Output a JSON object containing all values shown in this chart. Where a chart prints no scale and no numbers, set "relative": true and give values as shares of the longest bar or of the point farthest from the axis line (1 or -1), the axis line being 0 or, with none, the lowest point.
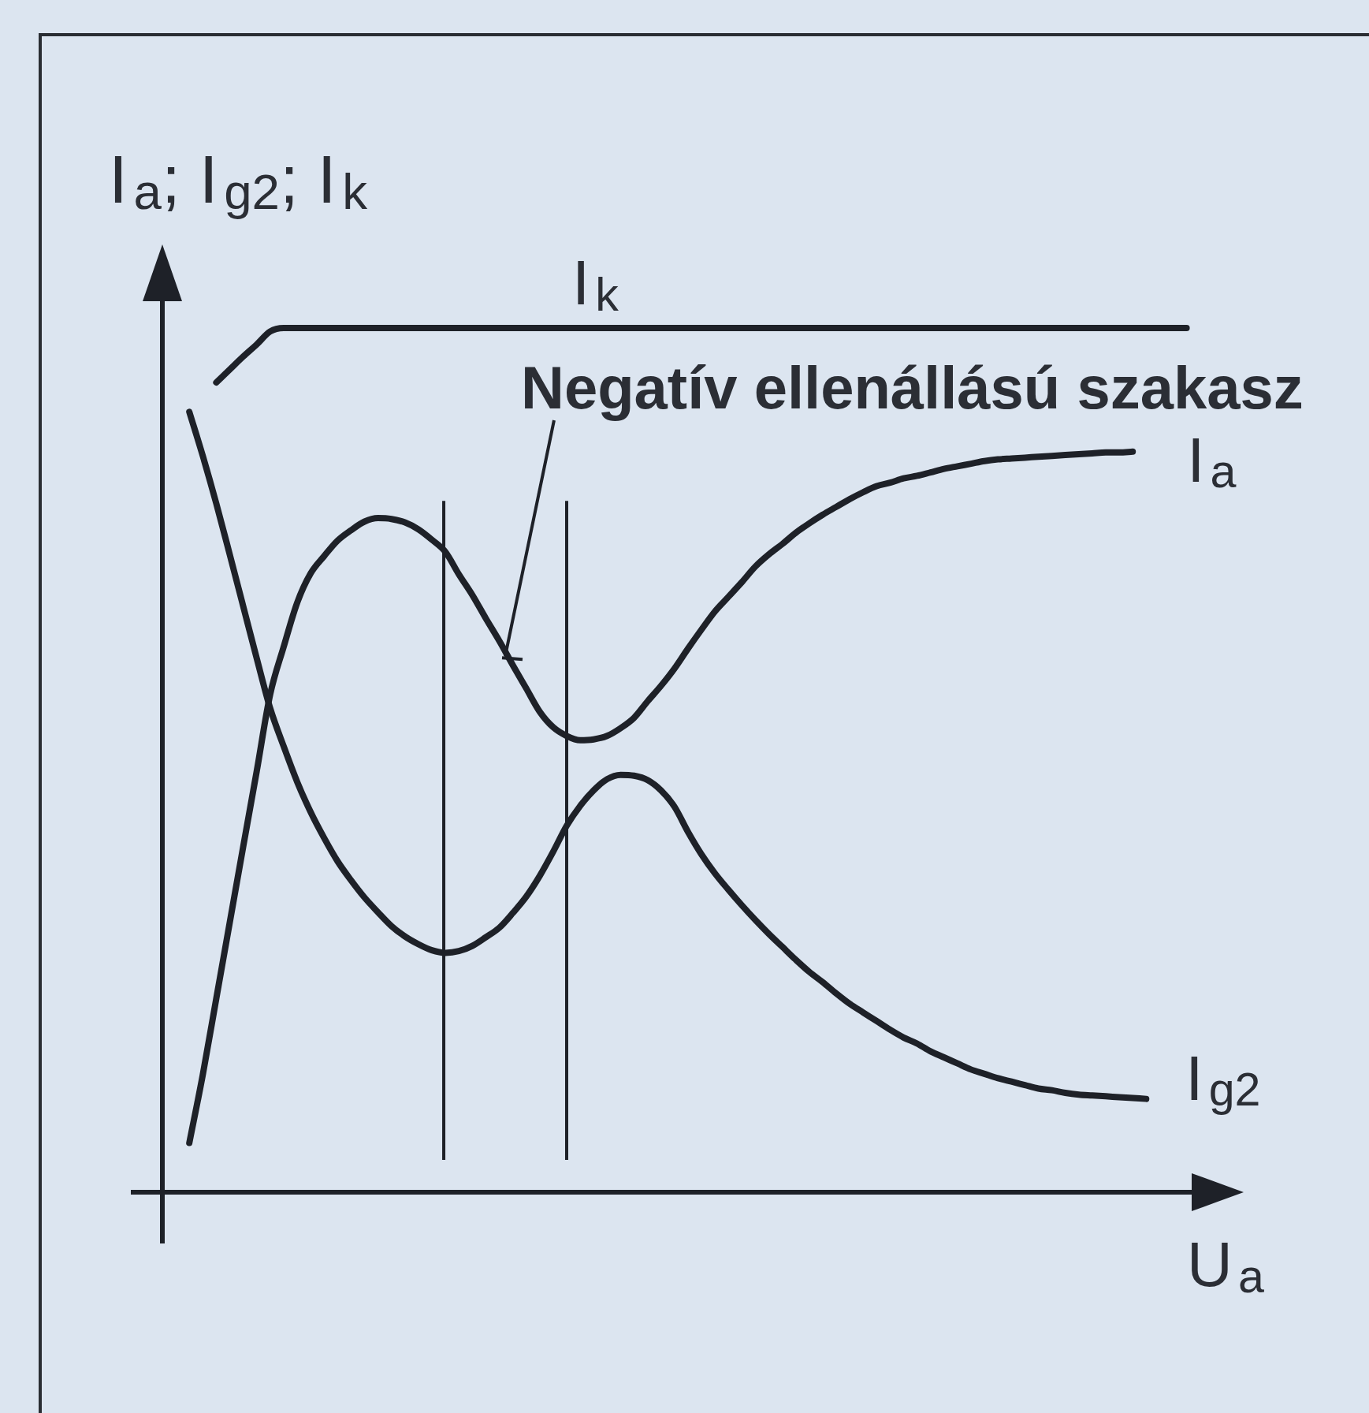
{
  "chart_data": {
    "type": "line",
    "relative": true,
    "xlabel": "U$_{a}$",
    "ylabel": "I$_{a}$; I$_{g2}$; I$_{k}$",
    "annotations": [
      "Negatív ellenállású szakasz"
    ],
    "categories": [
      null,
      null,
      null,
      null,
      null,
      null,
      null,
      null,
      null,
      null,
      null,
      null,
      null,
      null,
      null,
      null,
      null,
      null,
      null,
      null,
      null,
      null,
      null,
      null,
      null,
      null,
      null,
      null,
      null,
      null,
      null,
      null,
      null,
      null,
      null,
      null,
      null,
      null,
      null,
      null,
      null,
      null,
      null,
      null,
      null,
      null,
      null,
      null,
      null,
      null,
      null,
      null,
      null,
      null,
      null,
      null,
      null,
      null,
      null,
      null,
      null,
      null,
      null,
      null,
      null,
      null,
      null,
      null,
      null,
      null,
      null,
      null,
      null,
      null,
      null,
      null,
      null,
      null,
      null,
      null,
      null
    ],
    "series": [
      {
        "name": "I$_{a}$",
        "color": "#1e2128",
        "values": [
          null,
          null,
          0.057,
          0.136,
          0.224,
          0.312,
          0.4,
          0.487,
          0.576,
          0.631,
          0.682,
          0.716,
          0.736,
          0.754,
          0.766,
          0.776,
          0.78,
          0.779,
          0.775,
          0.767,
          0.755,
          0.741,
          0.715,
          0.691,
          0.664,
          0.638,
          0.61,
          0.583,
          0.556,
          0.538,
          0.528,
          0.523,
          0.524,
          0.528,
          0.537,
          0.549,
          0.568,
          0.586,
          0.606,
          0.629,
          0.651,
          0.672,
          0.689,
          0.706,
          0.724,
          0.738,
          0.75,
          0.763,
          0.774,
          0.784,
          0.793,
          0.802,
          0.81,
          0.817,
          0.821,
          0.826,
          0.829,
          0.833,
          0.837,
          0.84,
          0.843,
          0.846,
          0.848,
          0.849,
          0.85,
          0.851,
          0.852,
          0.853,
          0.854,
          0.855,
          0.856,
          0.856,
          0.857,
          null,
          null,
          null,
          null,
          null,
          null,
          null,
          null
        ]
      },
      {
        "name": "I$_{g2}$",
        "color": "#1e2128",
        "values": [
          null,
          null,
          0.903,
          0.852,
          0.797,
          0.738,
          0.678,
          0.618,
          0.56,
          0.516,
          0.475,
          0.44,
          0.41,
          0.383,
          0.361,
          0.341,
          0.324,
          0.308,
          0.296,
          0.287,
          0.28,
          0.277,
          0.279,
          0.285,
          0.295,
          0.306,
          0.323,
          0.342,
          0.366,
          0.394,
          0.424,
          0.447,
          0.465,
          0.478,
          0.483,
          0.482,
          0.477,
          0.465,
          0.446,
          0.417,
          0.391,
          0.369,
          0.35,
          0.332,
          0.315,
          0.299,
          0.284,
          0.269,
          0.255,
          0.243,
          0.23,
          0.218,
          0.208,
          0.198,
          0.188,
          0.179,
          0.172,
          0.163,
          0.156,
          0.149,
          0.142,
          0.137,
          0.132,
          0.128,
          0.124,
          0.12,
          0.118,
          0.115,
          0.113,
          0.112,
          0.111,
          0.11,
          0.109,
          0.108,
          null,
          null,
          null,
          null,
          null,
          null,
          null
        ]
      },
      {
        "name": "I$_{k}$",
        "color": "#1e2128",
        "values": [
          null,
          null,
          null,
          null,
          0.937,
          0.952,
          0.967,
          0.981,
          0.996,
          1,
          1,
          1,
          1,
          1,
          1,
          1,
          1,
          1,
          1,
          1,
          1,
          1,
          1,
          1,
          1,
          1,
          1,
          1,
          1,
          1,
          1,
          1,
          1,
          1,
          1,
          1,
          1,
          1,
          1,
          1,
          1,
          1,
          1,
          1,
          1,
          1,
          1,
          1,
          1,
          1,
          1,
          1,
          1,
          1,
          1,
          1,
          1,
          1,
          1,
          1,
          1,
          1,
          1,
          1,
          1,
          1,
          1,
          1,
          1,
          1,
          1,
          1,
          1,
          1,
          1,
          1,
          1,
          null,
          null,
          null,
          null
        ]
      }
    ]
  }
}
